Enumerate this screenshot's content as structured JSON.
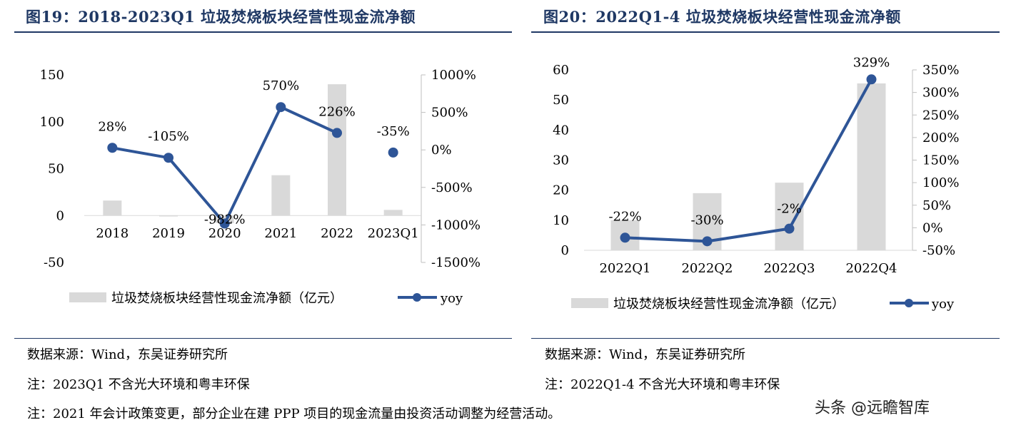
{
  "charts": [
    {
      "title": "图19：2018-2023Q1 垃圾焚烧板块经营性现金流净额",
      "legend": {
        "bar": "垃圾焚烧板块经营性现金流净额（亿元）",
        "line": "yoy"
      },
      "source": "数据来源：Wind，东吴证券研究所",
      "note": "注：2023Q1 不含光大环境和粤丰环保"
    },
    {
      "title": "图20：2022Q1-4 垃圾焚烧板块经营性现金流净额",
      "legend": {
        "bar": "垃圾焚烧板块经营性现金流净额（亿元）",
        "line": "yoy"
      },
      "source": "数据来源：Wind，东吴证券研究所",
      "note": "注：2022Q1-4 不含光大环境和粤丰环保"
    }
  ],
  "footnote": "注：2021 年会计政策变更，部分企业在建 PPP 项目的现金流量由投资活动调整为经营活动。",
  "watermark": "头条 @远瞻智库",
  "colors": {
    "title": "#1f3864",
    "bar": "#d9d9d9",
    "line": "#2e5597"
  },
  "chart_data": [
    {
      "type": "bar",
      "categories": [
        "2018",
        "2019",
        "2020",
        "2021",
        "2022",
        "2023Q1"
      ],
      "series": [
        {
          "name": "垃圾焚烧板块经营性现金流净额（亿元）",
          "type": "bar",
          "axis": "left",
          "values": [
            16,
            -1,
            -8,
            43,
            140,
            6
          ]
        },
        {
          "name": "yoy",
          "type": "line",
          "axis": "right",
          "values": [
            28,
            -105,
            -982,
            570,
            226,
            -35
          ],
          "labels": [
            "28%",
            "-105%",
            "-982%",
            "570%",
            "226%",
            "-35%"
          ]
        }
      ],
      "y_left": {
        "min": -50,
        "max": 150,
        "ticks": [
          -50,
          0,
          50,
          100,
          150
        ]
      },
      "y_right": {
        "min": -1500,
        "max": 1000,
        "ticks": [
          "-1500%",
          "-1000%",
          "-500%",
          "0%",
          "500%",
          "1000%"
        ]
      },
      "legend_position": "bottom"
    },
    {
      "type": "bar",
      "categories": [
        "2022Q1",
        "2022Q2",
        "2022Q3",
        "2022Q4"
      ],
      "series": [
        {
          "name": "垃圾焚烧板块经营性现金流净额（亿元）",
          "type": "bar",
          "axis": "left",
          "values": [
            10,
            19,
            22.5,
            55.5
          ]
        },
        {
          "name": "yoy",
          "type": "line",
          "axis": "right",
          "values": [
            -22,
            -30,
            -2,
            329
          ],
          "labels": [
            "-22%",
            "-30%",
            "-2%",
            "329%"
          ]
        }
      ],
      "y_left": {
        "min": 0,
        "max": 60,
        "ticks": [
          0,
          10,
          20,
          30,
          40,
          50,
          60
        ]
      },
      "y_right": {
        "min": -50,
        "max": 350,
        "ticks": [
          "-50%",
          "0%",
          "50%",
          "100%",
          "150%",
          "200%",
          "250%",
          "300%",
          "350%"
        ]
      },
      "legend_position": "bottom"
    }
  ]
}
